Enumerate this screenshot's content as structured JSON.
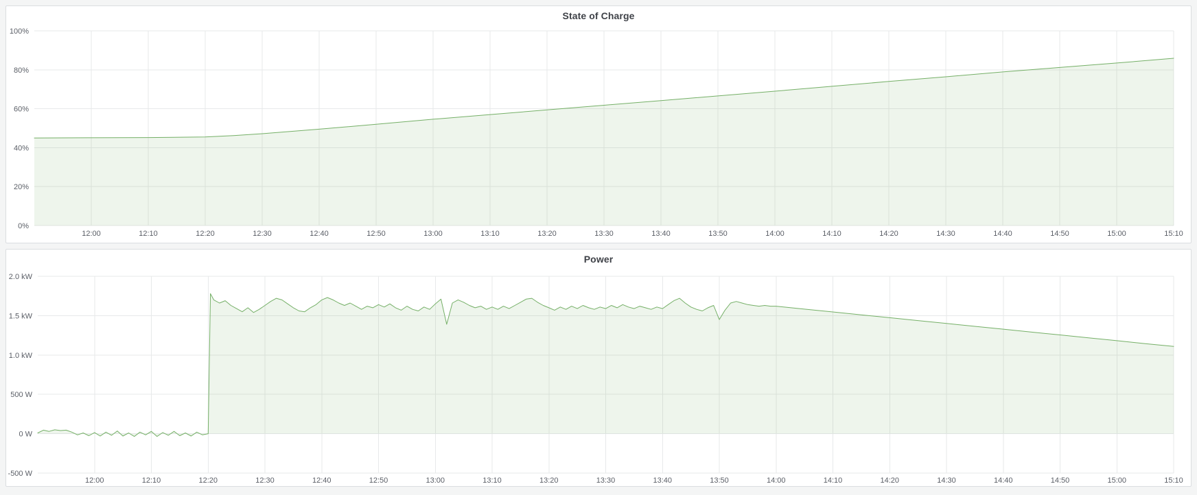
{
  "page": {
    "background": "#f4f5f5"
  },
  "panels": [
    {
      "title": "State of Charge"
    },
    {
      "title": "Power"
    }
  ],
  "chart_data": [
    {
      "type": "area",
      "title": "State of Charge",
      "xlabel": "",
      "ylabel": "",
      "x_range": [
        "11:50",
        "15:10"
      ],
      "xlim_minutes": [
        0,
        200
      ],
      "ylim": [
        0,
        100
      ],
      "grid": true,
      "legend": "none",
      "line_color": "#74af66",
      "fill_color": "rgba(116,175,102,0.12)",
      "y_ticks": [
        {
          "v": 0,
          "label": "0%"
        },
        {
          "v": 20,
          "label": "20%"
        },
        {
          "v": 40,
          "label": "40%"
        },
        {
          "v": 60,
          "label": "60%"
        },
        {
          "v": 80,
          "label": "80%"
        },
        {
          "v": 100,
          "label": "100%"
        }
      ],
      "x_ticks": [
        {
          "m": 10,
          "label": "12:00"
        },
        {
          "m": 20,
          "label": "12:10"
        },
        {
          "m": 30,
          "label": "12:20"
        },
        {
          "m": 40,
          "label": "12:30"
        },
        {
          "m": 50,
          "label": "12:40"
        },
        {
          "m": 60,
          "label": "12:50"
        },
        {
          "m": 70,
          "label": "13:00"
        },
        {
          "m": 80,
          "label": "13:10"
        },
        {
          "m": 90,
          "label": "13:20"
        },
        {
          "m": 100,
          "label": "13:30"
        },
        {
          "m": 110,
          "label": "13:40"
        },
        {
          "m": 120,
          "label": "13:50"
        },
        {
          "m": 130,
          "label": "14:00"
        },
        {
          "m": 140,
          "label": "14:10"
        },
        {
          "m": 150,
          "label": "14:20"
        },
        {
          "m": 160,
          "label": "14:30"
        },
        {
          "m": 170,
          "label": "14:40"
        },
        {
          "m": 180,
          "label": "14:50"
        },
        {
          "m": 190,
          "label": "15:00"
        },
        {
          "m": 200,
          "label": "15:10"
        }
      ],
      "series": [
        {
          "name": "State of Charge (%)",
          "points": [
            [
              0,
              45.0
            ],
            [
              10,
              45.1
            ],
            [
              20,
              45.2
            ],
            [
              30,
              45.5
            ],
            [
              35,
              46.2
            ],
            [
              40,
              47.2
            ],
            [
              50,
              49.5
            ],
            [
              60,
              52.0
            ],
            [
              70,
              54.6
            ],
            [
              80,
              57.0
            ],
            [
              90,
              59.4
            ],
            [
              100,
              61.8
            ],
            [
              110,
              64.2
            ],
            [
              120,
              66.6
            ],
            [
              130,
              69.0
            ],
            [
              140,
              71.5
            ],
            [
              150,
              74.0
            ],
            [
              160,
              76.4
            ],
            [
              170,
              78.9
            ],
            [
              180,
              81.2
            ],
            [
              190,
              83.5
            ],
            [
              200,
              85.9
            ]
          ]
        }
      ]
    },
    {
      "type": "area",
      "title": "Power",
      "xlabel": "",
      "ylabel": "",
      "x_range": [
        "11:50",
        "15:10"
      ],
      "xlim_minutes": [
        0,
        200
      ],
      "ylim": [
        -500,
        2000
      ],
      "unit": "watts",
      "grid": true,
      "legend": "none",
      "line_color": "#74af66",
      "fill_color": "rgba(116,175,102,0.12)",
      "y_ticks": [
        {
          "v": -500,
          "label": "-500 W"
        },
        {
          "v": 0,
          "label": "0 W"
        },
        {
          "v": 500,
          "label": "500 W"
        },
        {
          "v": 1000,
          "label": "1.0 kW"
        },
        {
          "v": 1500,
          "label": "1.5 kW"
        },
        {
          "v": 2000,
          "label": "2.0 kW"
        }
      ],
      "x_ticks": [
        {
          "m": 10,
          "label": "12:00"
        },
        {
          "m": 20,
          "label": "12:10"
        },
        {
          "m": 30,
          "label": "12:20"
        },
        {
          "m": 40,
          "label": "12:30"
        },
        {
          "m": 50,
          "label": "12:40"
        },
        {
          "m": 60,
          "label": "12:50"
        },
        {
          "m": 70,
          "label": "13:00"
        },
        {
          "m": 80,
          "label": "13:10"
        },
        {
          "m": 90,
          "label": "13:20"
        },
        {
          "m": 100,
          "label": "13:30"
        },
        {
          "m": 110,
          "label": "13:40"
        },
        {
          "m": 120,
          "label": "13:50"
        },
        {
          "m": 130,
          "label": "14:00"
        },
        {
          "m": 140,
          "label": "14:10"
        },
        {
          "m": 150,
          "label": "14:20"
        },
        {
          "m": 160,
          "label": "14:30"
        },
        {
          "m": 170,
          "label": "14:40"
        },
        {
          "m": 180,
          "label": "14:50"
        },
        {
          "m": 190,
          "label": "15:00"
        },
        {
          "m": 200,
          "label": "15:10"
        }
      ],
      "series": [
        {
          "name": "Power (W)",
          "points": [
            [
              0,
              10
            ],
            [
              1,
              45
            ],
            [
              2,
              30
            ],
            [
              3,
              50
            ],
            [
              4,
              40
            ],
            [
              5,
              45
            ],
            [
              6,
              20
            ],
            [
              7,
              -15
            ],
            [
              8,
              10
            ],
            [
              9,
              -25
            ],
            [
              10,
              15
            ],
            [
              11,
              -30
            ],
            [
              12,
              20
            ],
            [
              13,
              -20
            ],
            [
              14,
              35
            ],
            [
              15,
              -30
            ],
            [
              16,
              10
            ],
            [
              17,
              -35
            ],
            [
              18,
              20
            ],
            [
              19,
              -15
            ],
            [
              20,
              30
            ],
            [
              21,
              -35
            ],
            [
              22,
              15
            ],
            [
              23,
              -20
            ],
            [
              24,
              30
            ],
            [
              25,
              -25
            ],
            [
              26,
              10
            ],
            [
              27,
              -30
            ],
            [
              28,
              20
            ],
            [
              29,
              -15
            ],
            [
              30,
              0
            ],
            [
              30.4,
              1780
            ],
            [
              31,
              1700
            ],
            [
              32,
              1660
            ],
            [
              33,
              1690
            ],
            [
              34,
              1630
            ],
            [
              35,
              1590
            ],
            [
              36,
              1550
            ],
            [
              37,
              1600
            ],
            [
              38,
              1540
            ],
            [
              39,
              1580
            ],
            [
              40,
              1630
            ],
            [
              41,
              1680
            ],
            [
              42,
              1720
            ],
            [
              43,
              1700
            ],
            [
              44,
              1650
            ],
            [
              45,
              1600
            ],
            [
              46,
              1560
            ],
            [
              47,
              1550
            ],
            [
              48,
              1600
            ],
            [
              49,
              1640
            ],
            [
              50,
              1700
            ],
            [
              51,
              1730
            ],
            [
              52,
              1700
            ],
            [
              53,
              1660
            ],
            [
              54,
              1630
            ],
            [
              55,
              1660
            ],
            [
              56,
              1620
            ],
            [
              57,
              1580
            ],
            [
              58,
              1620
            ],
            [
              59,
              1600
            ],
            [
              60,
              1640
            ],
            [
              61,
              1610
            ],
            [
              62,
              1650
            ],
            [
              63,
              1600
            ],
            [
              64,
              1570
            ],
            [
              65,
              1620
            ],
            [
              66,
              1580
            ],
            [
              67,
              1560
            ],
            [
              68,
              1610
            ],
            [
              69,
              1580
            ],
            [
              70,
              1650
            ],
            [
              71,
              1710
            ],
            [
              72,
              1390
            ],
            [
              73,
              1660
            ],
            [
              74,
              1700
            ],
            [
              75,
              1670
            ],
            [
              76,
              1630
            ],
            [
              77,
              1600
            ],
            [
              78,
              1620
            ],
            [
              79,
              1580
            ],
            [
              80,
              1610
            ],
            [
              81,
              1580
            ],
            [
              82,
              1620
            ],
            [
              83,
              1590
            ],
            [
              84,
              1630
            ],
            [
              85,
              1670
            ],
            [
              86,
              1710
            ],
            [
              87,
              1720
            ],
            [
              88,
              1670
            ],
            [
              89,
              1630
            ],
            [
              90,
              1600
            ],
            [
              91,
              1570
            ],
            [
              92,
              1610
            ],
            [
              93,
              1580
            ],
            [
              94,
              1620
            ],
            [
              95,
              1590
            ],
            [
              96,
              1630
            ],
            [
              97,
              1600
            ],
            [
              98,
              1580
            ],
            [
              99,
              1610
            ],
            [
              100,
              1590
            ],
            [
              101,
              1630
            ],
            [
              102,
              1600
            ],
            [
              103,
              1640
            ],
            [
              104,
              1610
            ],
            [
              105,
              1590
            ],
            [
              106,
              1620
            ],
            [
              107,
              1600
            ],
            [
              108,
              1580
            ],
            [
              109,
              1610
            ],
            [
              110,
              1590
            ],
            [
              111,
              1640
            ],
            [
              112,
              1690
            ],
            [
              113,
              1720
            ],
            [
              114,
              1660
            ],
            [
              115,
              1610
            ],
            [
              116,
              1580
            ],
            [
              117,
              1560
            ],
            [
              118,
              1600
            ],
            [
              119,
              1630
            ],
            [
              120,
              1450
            ],
            [
              121,
              1570
            ],
            [
              122,
              1660
            ],
            [
              123,
              1680
            ],
            [
              124,
              1660
            ],
            [
              125,
              1640
            ],
            [
              126,
              1630
            ],
            [
              127,
              1620
            ],
            [
              128,
              1630
            ],
            [
              129,
              1620
            ],
            [
              130,
              1620
            ],
            [
              135,
              1583
            ],
            [
              140,
              1547
            ],
            [
              145,
              1510
            ],
            [
              150,
              1474
            ],
            [
              155,
              1437
            ],
            [
              160,
              1401
            ],
            [
              165,
              1364
            ],
            [
              170,
              1328
            ],
            [
              175,
              1291
            ],
            [
              180,
              1255
            ],
            [
              185,
              1218
            ],
            [
              190,
              1182
            ],
            [
              195,
              1145
            ],
            [
              200,
              1110
            ]
          ]
        }
      ]
    }
  ]
}
